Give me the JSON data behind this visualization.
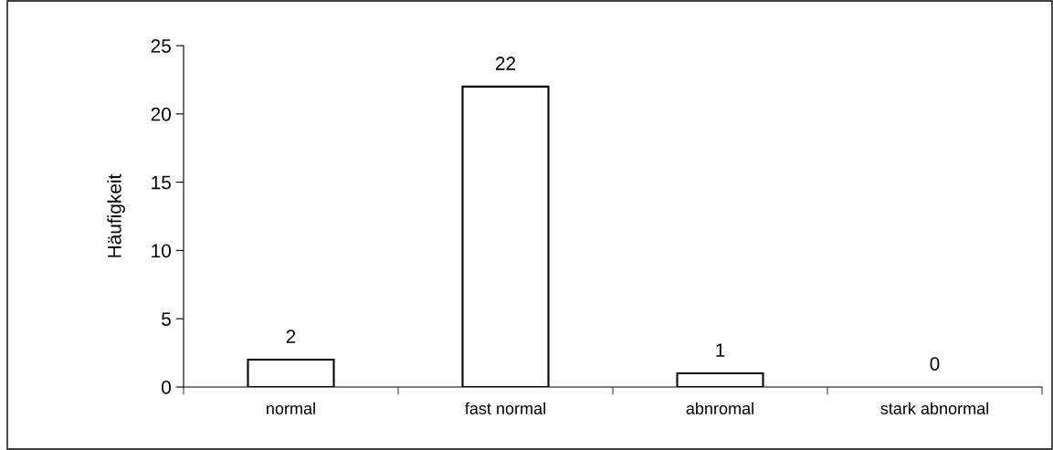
{
  "chart_data": {
    "type": "bar",
    "ylabel": "Häufigkeit",
    "categories": [
      "normal",
      "fast normal",
      "abnromal",
      "stark abnormal"
    ],
    "values": [
      2,
      22,
      1,
      0
    ],
    "color": "#ffffff",
    "ylim": [
      0,
      25
    ],
    "yticks": [
      0,
      5,
      10,
      15,
      20,
      25
    ],
    "data_labels": true,
    "grid": false,
    "legend": false
  }
}
